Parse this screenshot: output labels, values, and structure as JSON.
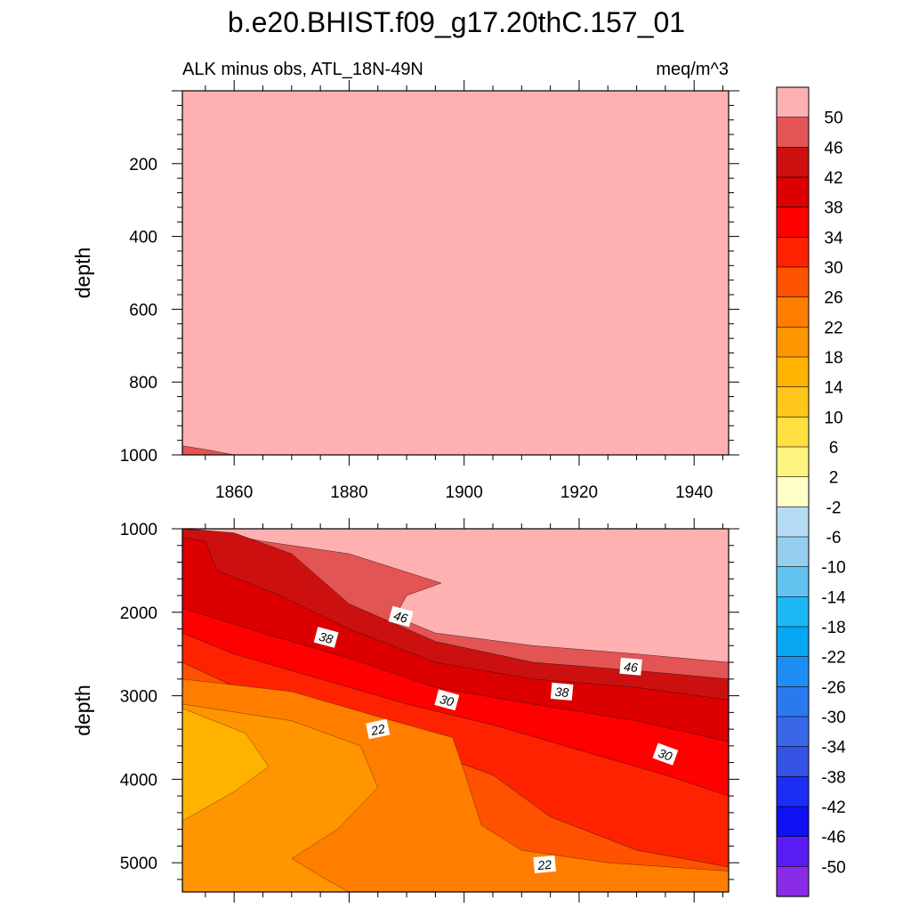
{
  "title": "b.e20.BHIST.f09_g17.20thC.157_01",
  "subtitle_left": "ALK minus obs, ATL_18N-49N",
  "subtitle_right": "meq/m^3",
  "chart_data": [
    {
      "type": "contour",
      "panel": "upper",
      "ylabel": "depth",
      "xlabel": "",
      "xlim": [
        1851,
        1946
      ],
      "ylim": [
        1000,
        0
      ],
      "x_ticks": [
        1860,
        1880,
        1900,
        1920,
        1940
      ],
      "y_ticks": [
        200,
        400,
        600,
        800,
        1000
      ],
      "bands": [
        {
          "fill": "#FFB0B0",
          "label": "> 50",
          "poly": [
            [
              1851,
              0
            ],
            [
              1946,
              0
            ],
            [
              1946,
              1000
            ],
            [
              1860,
              1000
            ],
            [
              1855,
              985
            ],
            [
              1851,
              975
            ]
          ]
        },
        {
          "fill": "#E35454",
          "label": "46 to 50",
          "poly": [
            [
              1851,
              975
            ],
            [
              1855,
              985
            ],
            [
              1860,
              1000
            ],
            [
              1851,
              1000
            ]
          ]
        }
      ],
      "contour_labels": []
    },
    {
      "type": "contour",
      "panel": "lower",
      "ylabel": "depth",
      "xlabel": "",
      "xlim": [
        1851,
        1946
      ],
      "ylim": [
        5350,
        1000
      ],
      "x_ticks": [
        1860,
        1880,
        1900,
        1920,
        1940
      ],
      "y_ticks": [
        1000,
        2000,
        3000,
        4000,
        5000
      ],
      "bands": [
        {
          "fill": "#FFB0B0",
          "label": "> 50",
          "poly": [
            [
              1851,
              1000
            ],
            [
              1946,
              1000
            ],
            [
              1946,
              2600
            ],
            [
              1930,
              2500
            ],
            [
              1912,
              2400
            ],
            [
              1895,
              2250
            ],
            [
              1888,
              2050
            ],
            [
              1890,
              1800
            ],
            [
              1896,
              1650
            ],
            [
              1880,
              1300
            ],
            [
              1865,
              1150
            ],
            [
              1855,
              1020
            ],
            [
              1851,
              1000
            ]
          ]
        },
        {
          "fill": "#E35454",
          "label": "46 to 50",
          "poly": [
            [
              1851,
              1000
            ],
            [
              1855,
              1020
            ],
            [
              1865,
              1150
            ],
            [
              1880,
              1300
            ],
            [
              1896,
              1650
            ],
            [
              1890,
              1800
            ],
            [
              1888,
              2050
            ],
            [
              1895,
              2250
            ],
            [
              1912,
              2400
            ],
            [
              1930,
              2500
            ],
            [
              1946,
              2600
            ],
            [
              1946,
              2800
            ],
            [
              1930,
              2700
            ],
            [
              1912,
              2600
            ],
            [
              1895,
              2350
            ],
            [
              1880,
              1900
            ],
            [
              1870,
              1300
            ],
            [
              1860,
              1050
            ],
            [
              1851,
              1000
            ]
          ]
        },
        {
          "fill": "#CC1010",
          "label": "42 to 46",
          "poly": [
            [
              1851,
              1000
            ],
            [
              1860,
              1050
            ],
            [
              1870,
              1300
            ],
            [
              1880,
              1900
            ],
            [
              1895,
              2350
            ],
            [
              1912,
              2600
            ],
            [
              1930,
              2700
            ],
            [
              1946,
              2800
            ],
            [
              1946,
              3050
            ],
            [
              1930,
              2900
            ],
            [
              1912,
              2800
            ],
            [
              1895,
              2600
            ],
            [
              1880,
              2200
            ],
            [
              1868,
              1800
            ],
            [
              1857,
              1500
            ],
            [
              1855,
              1150
            ],
            [
              1851,
              1100
            ]
          ]
        },
        {
          "fill": "#DD0000",
          "label": "38 to 42",
          "poly": [
            [
              1851,
              1100
            ],
            [
              1855,
              1150
            ],
            [
              1857,
              1500
            ],
            [
              1868,
              1800
            ],
            [
              1880,
              2200
            ],
            [
              1895,
              2600
            ],
            [
              1912,
              2800
            ],
            [
              1930,
              2900
            ],
            [
              1946,
              3050
            ],
            [
              1946,
              3550
            ],
            [
              1930,
              3300
            ],
            [
              1912,
              3100
            ],
            [
              1895,
              2900
            ],
            [
              1880,
              2550
            ],
            [
              1865,
              2250
            ],
            [
              1851,
              1950
            ]
          ]
        },
        {
          "fill": "#FF0000",
          "label": "34 to 38",
          "poly": [
            [
              1851,
              1950
            ],
            [
              1865,
              2250
            ],
            [
              1880,
              2550
            ],
            [
              1895,
              2900
            ],
            [
              1912,
              3100
            ],
            [
              1930,
              3300
            ],
            [
              1946,
              3550
            ],
            [
              1946,
              4200
            ],
            [
              1935,
              3950
            ],
            [
              1920,
              3650
            ],
            [
              1905,
              3350
            ],
            [
              1890,
              3100
            ],
            [
              1875,
              2800
            ],
            [
              1860,
              2500
            ],
            [
              1851,
              2250
            ]
          ]
        },
        {
          "fill": "#FF2200",
          "label": "30 to 34",
          "poly": [
            [
              1851,
              2250
            ],
            [
              1860,
              2500
            ],
            [
              1875,
              2800
            ],
            [
              1890,
              3100
            ],
            [
              1905,
              3350
            ],
            [
              1920,
              3650
            ],
            [
              1935,
              3950
            ],
            [
              1946,
              4200
            ],
            [
              1946,
              5050
            ],
            [
              1930,
              4850
            ],
            [
              1915,
              4450
            ],
            [
              1905,
              3950
            ],
            [
              1895,
              3700
            ],
            [
              1880,
              3450
            ],
            [
              1865,
              3050
            ],
            [
              1851,
              2600
            ]
          ]
        },
        {
          "fill": "#FF5200",
          "label": "26 to 30",
          "poly": [
            [
              1851,
              2600
            ],
            [
              1865,
              3050
            ],
            [
              1880,
              3450
            ],
            [
              1895,
              3700
            ],
            [
              1905,
              3950
            ],
            [
              1915,
              4450
            ],
            [
              1930,
              4850
            ],
            [
              1946,
              5050
            ],
            [
              1946,
              5350
            ],
            [
              1851,
              5350
            ],
            [
              1851,
              2800
            ]
          ]
        },
        {
          "fill": "#FF7E00",
          "label": "22 to 26",
          "poly": [
            [
              1851,
              2800
            ],
            [
              1870,
              2950
            ],
            [
              1885,
              3250
            ],
            [
              1898,
              3500
            ],
            [
              1900,
              3900
            ],
            [
              1903,
              4550
            ],
            [
              1910,
              4850
            ],
            [
              1925,
              5000
            ],
            [
              1946,
              5100
            ],
            [
              1946,
              5350
            ],
            [
              1851,
              5350
            ]
          ]
        },
        {
          "fill": "#FF9500",
          "label": "18 to 22",
          "poly": [
            [
              1851,
              3100
            ],
            [
              1870,
              3300
            ],
            [
              1882,
              3600
            ],
            [
              1885,
              4100
            ],
            [
              1878,
              4600
            ],
            [
              1870,
              4950
            ],
            [
              1876,
              5200
            ],
            [
              1880,
              5350
            ],
            [
              1851,
              5350
            ]
          ]
        },
        {
          "fill": "#FFB300",
          "label": "14 to 18",
          "poly": [
            [
              1851,
              3150
            ],
            [
              1862,
              3450
            ],
            [
              1866,
              3850
            ],
            [
              1860,
              4150
            ],
            [
              1851,
              4500
            ]
          ]
        }
      ],
      "contour_labels": [
        {
          "text": "46",
          "x": 1889,
          "y": 2050,
          "angle": 15
        },
        {
          "text": "38",
          "x": 1876,
          "y": 2300,
          "angle": 15
        },
        {
          "text": "30",
          "x": 1897,
          "y": 3050,
          "angle": 15
        },
        {
          "text": "22",
          "x": 1885,
          "y": 3400,
          "angle": -12
        },
        {
          "text": "46",
          "x": 1929,
          "y": 2650,
          "angle": 5
        },
        {
          "text": "38",
          "x": 1917,
          "y": 2950,
          "angle": 5
        },
        {
          "text": "30",
          "x": 1935,
          "y": 3700,
          "angle": 20
        },
        {
          "text": "22",
          "x": 1914,
          "y": 5020,
          "angle": -5
        }
      ]
    }
  ],
  "colorbar": {
    "labels": [
      "50",
      "46",
      "42",
      "38",
      "34",
      "30",
      "26",
      "22",
      "18",
      "14",
      "10",
      "6",
      "2",
      "-2",
      "-6",
      "-10",
      "-14",
      "-18",
      "-22",
      "-26",
      "-30",
      "-34",
      "-38",
      "-42",
      "-46",
      "-50"
    ],
    "colors": [
      "#FFB0B0",
      "#E35454",
      "#CC1010",
      "#DD0000",
      "#FF0000",
      "#FF2200",
      "#FF5200",
      "#FF7E00",
      "#FF9500",
      "#FFB300",
      "#FFC61E",
      "#FFE040",
      "#FFF380",
      "#FFFFC8",
      "#B5DCF4",
      "#95CDEE",
      "#62C3F0",
      "#1CB8F5",
      "#06A6F2",
      "#1E8EF4",
      "#2A79EE",
      "#3A66E8",
      "#3452E3",
      "#1C2EF5",
      "#1010F5",
      "#5A1CF5",
      "#8A2BE8"
    ]
  }
}
